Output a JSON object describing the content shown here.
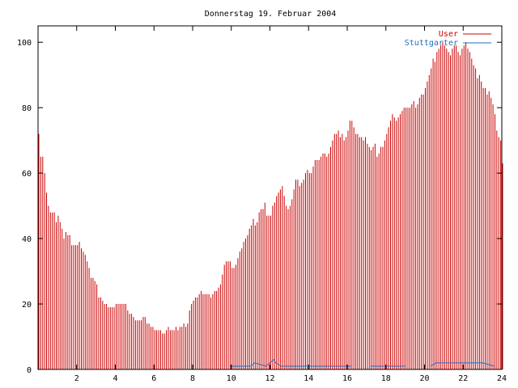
{
  "chart_data": {
    "type": "bar",
    "title": "Donnerstag 19. Februar 2004",
    "xlabel": "",
    "ylabel": "",
    "xlim": [
      0,
      24
    ],
    "ylim": [
      0,
      105
    ],
    "x_ticks": [
      2,
      4,
      6,
      8,
      10,
      12,
      14,
      16,
      18,
      20,
      22,
      24
    ],
    "y_ticks": [
      0,
      20,
      40,
      60,
      80,
      100
    ],
    "grid": false,
    "legend": "top-right",
    "colors": {
      "User": "#cc0000",
      "Stuttgarter": "#1f6fbf",
      "axis": "#000000"
    },
    "series": [
      {
        "name": "User",
        "sample_interval_hours": 0.1,
        "values": [
          72,
          65,
          65,
          60,
          54,
          50,
          48,
          48,
          48,
          45,
          47,
          45,
          43,
          40,
          42,
          41,
          41,
          38,
          38,
          38,
          38,
          39,
          37,
          36,
          35,
          33,
          31,
          28,
          28,
          27,
          26,
          22,
          22,
          21,
          20,
          20,
          19,
          19,
          19,
          19,
          20,
          20,
          20,
          20,
          20,
          20,
          18,
          17,
          17,
          16,
          15,
          15,
          15,
          15,
          16,
          16,
          14,
          14,
          13,
          13,
          12,
          12,
          12,
          12,
          11,
          11,
          12,
          13,
          12,
          12,
          12,
          13,
          12,
          13,
          13,
          14,
          13,
          14,
          18,
          20,
          21,
          22,
          22,
          23,
          24,
          23,
          23,
          23,
          23,
          22,
          23,
          24,
          24,
          25,
          26,
          29,
          32,
          33,
          33,
          33,
          31,
          31,
          32,
          34,
          36,
          37,
          39,
          40,
          41,
          43,
          44,
          46,
          44,
          45,
          48,
          49,
          49,
          51,
          47,
          47,
          47,
          50,
          51,
          53,
          54,
          55,
          56,
          53,
          50,
          49,
          50,
          52,
          55,
          58,
          58,
          56,
          57,
          58,
          60,
          61,
          60,
          60,
          62,
          64,
          64,
          64,
          65,
          66,
          66,
          65,
          66,
          68,
          70,
          72,
          72,
          73,
          71,
          72,
          70,
          71,
          73,
          76,
          76,
          74,
          72,
          72,
          71,
          71,
          70,
          71,
          69,
          68,
          67,
          68,
          69,
          65,
          66,
          68,
          68,
          70,
          72,
          74,
          76,
          78,
          77,
          76,
          77,
          78,
          79,
          80,
          80,
          80,
          80,
          81,
          82,
          80,
          81,
          83,
          84,
          84,
          86,
          88,
          90,
          92,
          95,
          94,
          97,
          98,
          99,
          100,
          99,
          98,
          97,
          96,
          98,
          99,
          99,
          97,
          96,
          98,
          99,
          100,
          98,
          97,
          95,
          93,
          92,
          89,
          90,
          88,
          86,
          86,
          84,
          85,
          83,
          81,
          78,
          73,
          71,
          70,
          63
        ]
      },
      {
        "name": "Stuttgarter",
        "segments": [
          {
            "x": [
              9.9,
              11.0,
              11.2,
              11.8,
              12.0,
              12.2,
              12.3,
              12.6,
              13.5,
              14.5,
              15.5,
              16.2
            ],
            "values": [
              1,
              1,
              2,
              1,
              2,
              3,
              2,
              1,
              1,
              1,
              1,
              1
            ]
          },
          {
            "x": [
              17.2,
              19.0
            ],
            "values": [
              1,
              1
            ]
          },
          {
            "x": [
              20.3,
              20.6,
              21.0,
              22.0,
              23.0,
              23.6
            ],
            "values": [
              1,
              2,
              2,
              2,
              2,
              1
            ]
          }
        ]
      }
    ]
  }
}
